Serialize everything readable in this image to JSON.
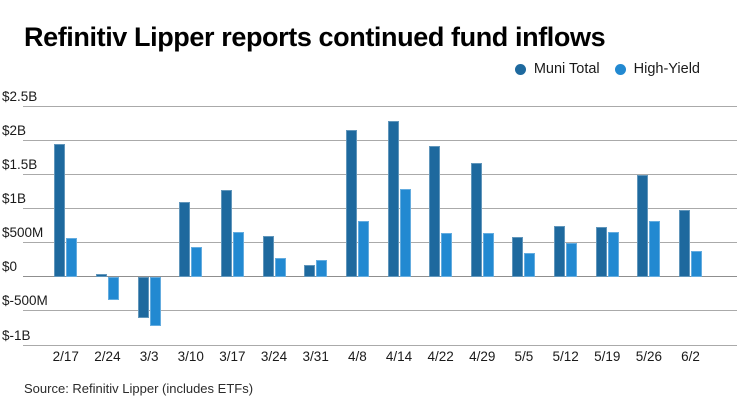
{
  "title": "Refinitiv Lipper reports continued fund inflows",
  "source": "Source: Refinitiv Lipper (includes ETFs)",
  "colors": {
    "muni_total": "#1e699e",
    "high_yield": "#2289d1",
    "gridline": "#aaaaaa",
    "text": "#1a1a1a"
  },
  "legend": {
    "items": [
      {
        "label": "Muni Total",
        "color_key": "muni_total"
      },
      {
        "label": "High-Yield",
        "color_key": "high_yield"
      }
    ]
  },
  "chart_data": {
    "type": "bar",
    "title": "Refinitiv Lipper reports continued fund inflows",
    "unit": "USD millions",
    "categories": [
      "2/17",
      "2/24",
      "3/3",
      "3/10",
      "3/17",
      "3/24",
      "3/31",
      "4/8",
      "4/14",
      "4/22",
      "4/29",
      "5/5",
      "5/12",
      "5/19",
      "5/26",
      "6/2"
    ],
    "series": [
      {
        "name": "Muni Total",
        "color_key": "muni_total",
        "values_millions": [
          1950,
          40,
          -600,
          1100,
          1270,
          600,
          170,
          2150,
          2280,
          1910,
          1660,
          580,
          750,
          730,
          1490,
          975
        ]
      },
      {
        "name": "High-Yield",
        "color_key": "high_yield",
        "values_millions": [
          570,
          -330,
          -720,
          430,
          660,
          270,
          250,
          820,
          1290,
          640,
          640,
          340,
          490,
          650,
          820,
          370
        ]
      }
    ],
    "y_axis": {
      "min_millions": -1000,
      "max_millions": 2500,
      "ticks": [
        {
          "label": "$2.5B",
          "value_millions": 2500
        },
        {
          "label": "$2B",
          "value_millions": 2000
        },
        {
          "label": "$1.5B",
          "value_millions": 1500
        },
        {
          "label": "$1B",
          "value_millions": 1000
        },
        {
          "label": "$500M",
          "value_millions": 500
        },
        {
          "label": "$0",
          "value_millions": 0
        },
        {
          "label": "$-500M",
          "value_millions": -500
        },
        {
          "label": "$-1B",
          "value_millions": -1000
        }
      ]
    },
    "grid": true,
    "legend_position": "top-right"
  }
}
